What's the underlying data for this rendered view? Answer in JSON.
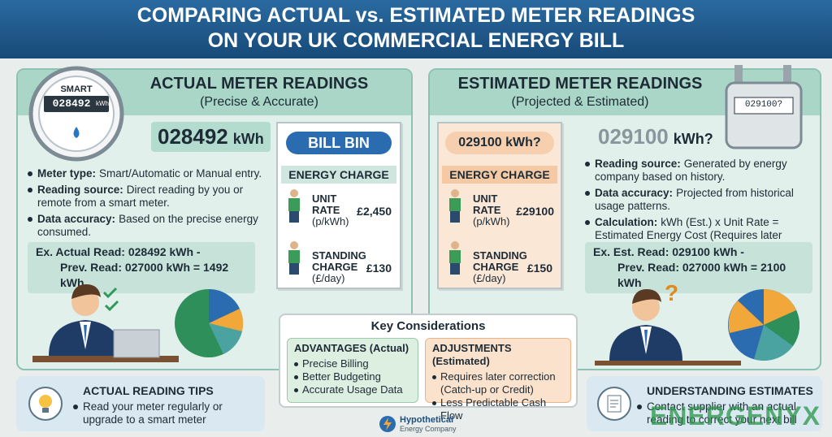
{
  "header": {
    "title_lines": [
      "COMPARING ACTUAL vs. ESTIMATED METER READINGS",
      "ON YOUR UK COMMERCIAL ENERGY BILL"
    ]
  },
  "actual": {
    "heading": "ACTUAL METER READINGS",
    "subheading": "(Precise & Accurate)",
    "meter": {
      "label": "SMART",
      "display": "028492",
      "unit": "kWh"
    },
    "reading": {
      "value": "028492",
      "unit": "kWh"
    },
    "bullets": [
      {
        "label": "Meter type:",
        "text": "Smart/Automatic or Manual entry."
      },
      {
        "label": "Reading source:",
        "text": "Direct reading by you or remote from a smart meter."
      },
      {
        "label": "Data accuracy:",
        "text": "Based on the precise energy consumed."
      }
    ],
    "example": {
      "line1": "Ex. Actual Read: 028492 kWh -",
      "line2": "Prev. Read: 027000 kWh =",
      "result": "1492 kWh"
    },
    "tips": {
      "title": "ACTUAL READING TIPS",
      "text": "Read your meter regularly or upgrade to a smart meter"
    }
  },
  "actual_bill": {
    "title": "BILL BIN",
    "section": "ENERGY CHARGE",
    "rows": [
      {
        "label_lines": [
          "UNIT",
          "RATE"
        ],
        "unit": "(p/kWh)",
        "amount": "£2,450"
      },
      {
        "label_lines": [
          "STANDING",
          "CHARGE"
        ],
        "unit": "(£/day)",
        "amount": "£130"
      }
    ]
  },
  "estimated_bill": {
    "title": "029100 kWh?",
    "section": "ENERGY CHARGE",
    "rows": [
      {
        "label_lines": [
          "UNIT",
          "RATE"
        ],
        "unit": "(p/kWh)",
        "amount": "£29100"
      },
      {
        "label_lines": [
          "STANDING",
          "CHARGE"
        ],
        "unit": "(£/day)",
        "amount": "£150"
      }
    ]
  },
  "estimated": {
    "heading": "ESTIMATED METER READINGS",
    "subheading": "(Projected & Estimated)",
    "meter": {
      "display": "029100?"
    },
    "reading": {
      "value": "029100",
      "unit": "kWh?"
    },
    "bullets": [
      {
        "label": "Reading source:",
        "text": "Generated by energy company based on history."
      },
      {
        "label": "Data accuracy:",
        "text": "Projected from historical usage patterns."
      },
      {
        "label": "Calculation:",
        "text": "kWh (Est.) x Unit Rate = Estimated Energy Cost (Requires later adjustment)."
      }
    ],
    "example": {
      "line1": "Ex. Est. Read: 029100 kWh -",
      "line2": "Prev. Read: 027000 kWh =",
      "result": "2100 kWh"
    },
    "tips": {
      "title": "UNDERSTANDING ESTIMATES",
      "text": "Contact supplier with an actual reading to correct your next bill"
    }
  },
  "key": {
    "title": "Key Considerations",
    "advantages": {
      "title": "ADVANTAGES (Actual)",
      "items": [
        "Precise Billing",
        "Better Budgeting",
        "Accurate Usage Data"
      ]
    },
    "adjustments": {
      "title": "ADJUSTMENTS (Estimated)",
      "items": [
        "Requires later correction (Catch-up or Credit)",
        "Less Predictable Cash Flow"
      ]
    }
  },
  "logo": {
    "name": "Hypothetical",
    "sub": "Energy Company"
  },
  "watermark": "ENERGENYX"
}
